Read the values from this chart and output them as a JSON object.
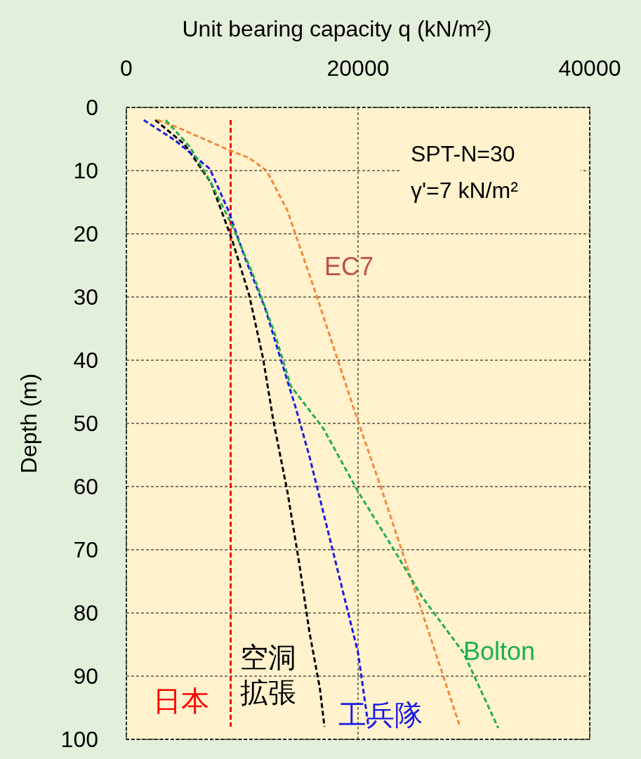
{
  "chart_data": {
    "type": "line",
    "xlabel": "Unit bearing capacity q (kN/m²)",
    "ylabel": "Depth (m)",
    "xlim": [
      0,
      40000
    ],
    "xticks": [
      0,
      20000,
      40000
    ],
    "ylim": [
      100,
      0
    ],
    "yticks": [
      0,
      10,
      20,
      30,
      40,
      50,
      60,
      70,
      80,
      90,
      100
    ],
    "grid": true,
    "line_style": "dashed",
    "annotations": [
      "SPT-N=30",
      "γ'=7 kN/m²"
    ],
    "series": [
      {
        "name": "日本",
        "color": "#ff0000",
        "x": [
          9000,
          9000
        ],
        "values": [
          2,
          98
        ]
      },
      {
        "name": "空洞拡張",
        "color": "#000000",
        "x": [
          2500,
          5000,
          7300,
          9100,
          10600,
          11800,
          12700,
          13900,
          14900,
          15800,
          16700,
          17100
        ],
        "values": [
          2,
          5.8,
          11.9,
          20.8,
          29.7,
          39.7,
          49.7,
          60.8,
          71.9,
          83,
          91.9,
          98
        ]
      },
      {
        "name": "工兵隊",
        "color": "#1a1ae6",
        "x": [
          1500,
          4200,
          7200,
          8800,
          10300,
          12000,
          13300,
          14600,
          15800,
          17300,
          18800,
          20000,
          20900
        ],
        "values": [
          2,
          5.2,
          9.7,
          16.3,
          24.1,
          31.9,
          39.7,
          47.4,
          55.2,
          66.3,
          77.4,
          86.3,
          98
        ]
      },
      {
        "name": "EC7",
        "color": "#f08a3c",
        "x": [
          2700,
          4200,
          8800,
          10600,
          12100,
          13900,
          16400,
          18200,
          20000,
          22100,
          23900,
          25500,
          27300,
          28800
        ],
        "values": [
          2,
          3,
          6.7,
          8,
          10,
          16.3,
          29.7,
          39.7,
          49.7,
          60.8,
          70.8,
          79.7,
          89.7,
          98
        ]
      },
      {
        "name": "Bolton",
        "color": "#1fae4f",
        "x": [
          3400,
          5500,
          7300,
          9100,
          10900,
          12700,
          14200,
          17000,
          20000,
          23000,
          25500,
          29100,
          32100
        ],
        "values": [
          2,
          6.3,
          11.9,
          18.6,
          26.3,
          35.2,
          44.1,
          50.8,
          60.8,
          69.7,
          77.4,
          86.3,
          98.2
        ]
      }
    ]
  }
}
